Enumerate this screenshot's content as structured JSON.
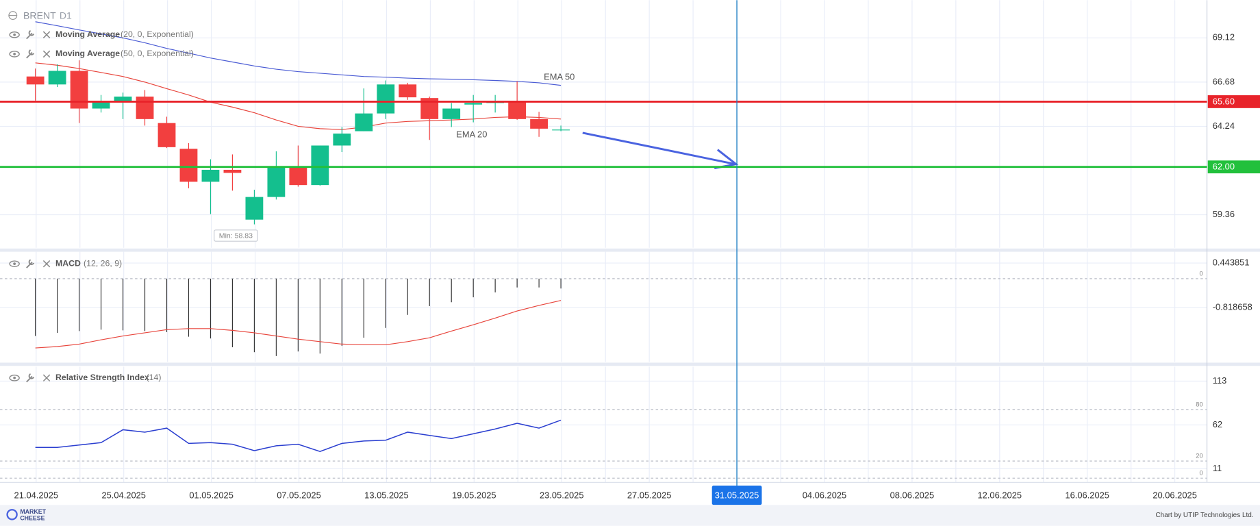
{
  "chart_data": [
    {
      "type": "candlestick",
      "title": "BRENT",
      "timeframe": "D1",
      "indicators": [
        {
          "name": "Moving Average",
          "params": "(20, 0, Exponential)"
        },
        {
          "name": "Moving Average",
          "params": "(50, 0, Exponential)"
        }
      ],
      "open": [
        66.99,
        66.55,
        67.3,
        65.22,
        65.57,
        65.88,
        64.42,
        63.0,
        61.18,
        61.84,
        59.09,
        60.34,
        62.02,
        61.0,
        63.18,
        63.97,
        64.95,
        66.55,
        65.8,
        64.64,
        65.44,
        65.53,
        65.62,
        64.64,
        64.06
      ],
      "high": [
        67.43,
        67.66,
        67.88,
        65.97,
        66.1,
        66.24,
        64.77,
        63.31,
        62.42,
        62.69,
        60.74,
        62.86,
        63.18,
        63.18,
        64.2,
        66.33,
        66.77,
        66.64,
        65.88,
        65.53,
        65.97,
        65.97,
        66.72,
        65.04,
        64.28
      ],
      "low": [
        65.66,
        66.41,
        64.42,
        65.0,
        64.64,
        64.28,
        63.04,
        60.82,
        59.4,
        60.69,
        58.83,
        60.2,
        60.91,
        60.96,
        62.82,
        63.97,
        64.64,
        65.7,
        63.49,
        64.2,
        64.46,
        65.0,
        64.6,
        63.66,
        63.97
      ],
      "close": [
        66.55,
        67.3,
        65.22,
        65.57,
        65.88,
        64.64,
        63.09,
        61.18,
        61.84,
        61.67,
        60.34,
        62.02,
        61.0,
        63.18,
        63.84,
        64.95,
        66.55,
        65.84,
        64.64,
        65.22,
        65.53,
        65.57,
        64.64,
        64.11,
        64.06
      ],
      "up_color": "#14bf8e",
      "down_color": "#f23f3f",
      "series": [
        {
          "name": "EMA 20",
          "color": "#e8453c",
          "values": [
            67.74,
            67.61,
            67.43,
            67.21,
            66.99,
            66.68,
            66.32,
            65.97,
            65.57,
            65.3,
            64.99,
            64.59,
            64.24,
            64.11,
            64.06,
            64.2,
            64.42,
            64.51,
            64.55,
            64.59,
            64.64,
            64.73,
            64.77,
            64.73,
            64.64
          ]
        },
        {
          "name": "EMA 50",
          "color": "#4a5bd4",
          "values": [
            70.01,
            69.79,
            69.56,
            69.34,
            69.12,
            68.85,
            68.54,
            68.28,
            68.01,
            67.79,
            67.57,
            67.39,
            67.26,
            67.17,
            67.08,
            66.99,
            66.95,
            66.9,
            66.86,
            66.84,
            66.81,
            66.77,
            66.72,
            66.64,
            66.5
          ]
        }
      ],
      "hlines": [
        {
          "value": 65.6,
          "label": "65.60",
          "color": "#e8232a"
        },
        {
          "value": 62,
          "label": "62.00",
          "color": "#22c03c"
        }
      ],
      "min_annotation": "Min: 58.83",
      "ylim": [
        57.54,
        71.2
      ],
      "yticks": [
        69.12,
        66.68,
        64.24,
        59.36
      ],
      "grid": true
    },
    {
      "type": "macd",
      "title": "MACD",
      "params": "(12, 26, 9)",
      "series": [
        {
          "color": "#333333",
          "style": "histogram",
          "values": [
            -1.63,
            -1.54,
            -1.49,
            -1.45,
            -1.47,
            -1.49,
            -1.52,
            -1.65,
            -1.7,
            -1.95,
            -2.09,
            -2.2,
            -2.07,
            -2.13,
            -1.91,
            -1.68,
            -1.4,
            -1.03,
            -0.78,
            -0.67,
            -0.53,
            -0.39,
            -0.25,
            -0.25,
            -0.28
          ]
        },
        {
          "color": "#e8453c",
          "style": "line",
          "values": [
            -1.97,
            -1.93,
            -1.86,
            -1.74,
            -1.63,
            -1.54,
            -1.45,
            -1.42,
            -1.42,
            -1.47,
            -1.54,
            -1.63,
            -1.72,
            -1.79,
            -1.86,
            -1.88,
            -1.88,
            -1.79,
            -1.68,
            -1.49,
            -1.31,
            -1.12,
            -0.92,
            -0.76,
            -0.62
          ]
        }
      ],
      "levels": [
        0
      ],
      "ylim": [
        -2.365,
        0.765
      ],
      "yticks": [
        0.443851,
        -0.818658
      ],
      "grid": true
    },
    {
      "type": "line",
      "title": "Relative Strength Index",
      "params": "(14)",
      "series": [
        {
          "color": "#2b3fd0",
          "values": [
            35.8,
            35.8,
            38.6,
            41.4,
            56.4,
            53.6,
            58.3,
            40.5,
            41.4,
            39.5,
            32.1,
            37.7,
            39.5,
            31.1,
            40.5,
            43.3,
            44.2,
            53.6,
            49.8,
            46.1,
            51.7,
            57.3,
            63.9,
            58.3,
            67.6
          ]
        }
      ],
      "levels": [
        80,
        20,
        0
      ],
      "ylim": [
        -4.9,
        129.8
      ],
      "yticks": [
        113,
        62,
        11
      ],
      "grid": true
    }
  ],
  "x_labels": [
    "21.04.2025",
    "25.04.2025",
    "01.05.2025",
    "07.05.2025",
    "13.05.2025",
    "19.05.2025",
    "23.05.2025",
    "27.05.2025",
    {
      "label": "31.05.2025",
      "highlight": true
    },
    "04.06.2025",
    "08.06.2025",
    "12.06.2025",
    "16.06.2025",
    "20.06.2025"
  ],
  "footer": {
    "credit": "Chart by UTIP Technologies Ltd.",
    "logo": [
      "MARKET",
      "CHEESE"
    ]
  }
}
